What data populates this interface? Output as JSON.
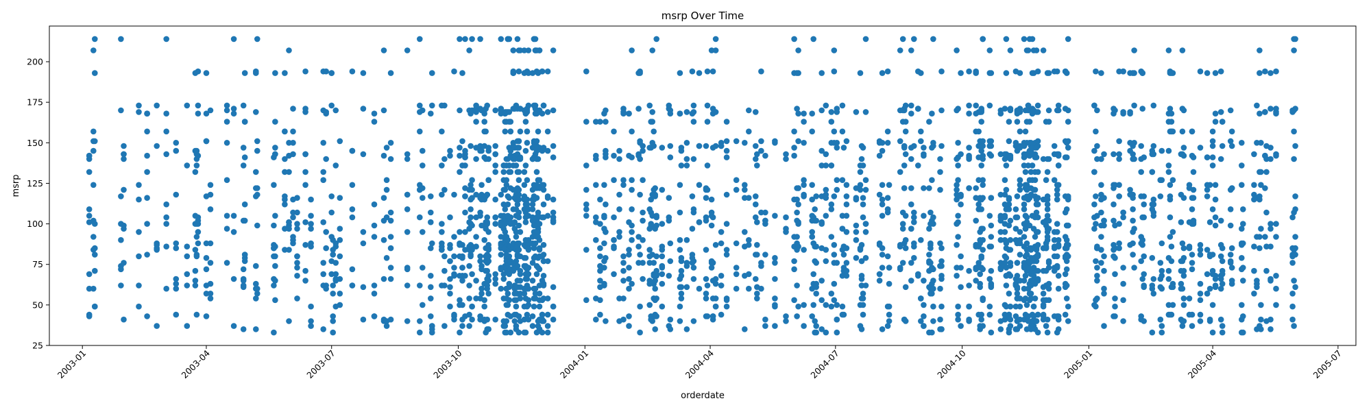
{
  "chart_data": {
    "type": "scatter",
    "title": "msrp Over Time",
    "xlabel": "orderdate",
    "ylabel": "msrp",
    "xlim": [
      "2002-12-08",
      "2005-07-14"
    ],
    "ylim": [
      25,
      222
    ],
    "x_ticks": [
      "2003-01",
      "2003-04",
      "2003-07",
      "2003-10",
      "2004-01",
      "2004-04",
      "2004-07",
      "2004-10",
      "2005-01",
      "2005-04",
      "2005-07"
    ],
    "y_ticks": [
      25,
      50,
      75,
      100,
      125,
      150,
      175,
      200
    ],
    "marker_color": "#1f77b4",
    "grid": false,
    "order_dates": [
      "2003-01-06",
      "2003-01-09",
      "2003-01-10",
      "2003-01-29",
      "2003-01-31",
      "2003-02-11",
      "2003-02-17",
      "2003-02-24",
      "2003-03-03",
      "2003-03-10",
      "2003-03-18",
      "2003-03-24",
      "2003-03-25",
      "2003-03-26",
      "2003-04-01",
      "2003-04-04",
      "2003-04-16",
      "2003-04-21",
      "2003-04-28",
      "2003-04-29",
      "2003-05-07",
      "2003-05-08",
      "2003-05-20",
      "2003-05-21",
      "2003-05-28",
      "2003-05-31",
      "2003-06-03",
      "2003-06-06",
      "2003-06-12",
      "2003-06-16",
      "2003-06-25",
      "2003-06-27",
      "2003-07-01",
      "2003-07-02",
      "2003-07-04",
      "2003-07-07",
      "2003-07-16",
      "2003-07-24",
      "2003-08-01",
      "2003-08-08",
      "2003-08-10",
      "2003-08-13",
      "2003-08-25",
      "2003-09-03",
      "2003-09-05",
      "2003-09-11",
      "2003-09-12",
      "2003-09-19",
      "2003-09-21",
      "2003-09-25",
      "2003-09-28",
      "2003-10-02",
      "2003-10-04",
      "2003-10-06",
      "2003-10-09",
      "2003-10-10",
      "2003-10-11",
      "2003-10-14",
      "2003-10-17",
      "2003-10-18",
      "2003-10-20",
      "2003-10-21",
      "2003-10-22",
      "2003-10-23",
      "2003-10-28",
      "2003-11-01",
      "2003-11-03",
      "2003-11-04",
      "2003-11-05",
      "2003-11-06",
      "2003-11-07",
      "2003-11-08",
      "2003-11-10",
      "2003-11-11",
      "2003-11-12",
      "2003-11-13",
      "2003-11-14",
      "2003-11-15",
      "2003-11-18",
      "2003-11-19",
      "2003-11-20",
      "2003-11-21",
      "2003-11-24",
      "2003-11-25",
      "2003-11-26",
      "2003-11-27",
      "2003-11-28",
      "2003-11-29",
      "2003-12-01",
      "2003-12-02",
      "2003-12-05",
      "2003-12-09",
      "2004-01-02",
      "2004-01-09",
      "2004-01-12",
      "2004-01-15",
      "2004-01-16",
      "2004-01-22",
      "2004-01-26",
      "2004-01-29",
      "2004-02-02",
      "2004-02-04",
      "2004-02-09",
      "2004-02-10",
      "2004-02-12",
      "2004-02-17",
      "2004-02-18",
      "2004-02-19",
      "2004-02-20",
      "2004-02-21",
      "2004-02-22",
      "2004-02-26",
      "2004-03-02",
      "2004-03-03",
      "2004-03-10",
      "2004-03-11",
      "2004-03-15",
      "2004-03-19",
      "2004-03-20",
      "2004-03-24",
      "2004-03-29",
      "2004-03-30",
      "2004-04-02",
      "2004-04-03",
      "2004-04-05",
      "2004-04-09",
      "2004-04-13",
      "2004-04-20",
      "2004-04-26",
      "2004-04-29",
      "2004-05-04",
      "2004-05-05",
      "2004-05-08",
      "2004-05-11",
      "2004-05-18",
      "2004-05-26",
      "2004-06-01",
      "2004-06-03",
      "2004-06-04",
      "2004-06-08",
      "2004-06-14",
      "2004-06-15",
      "2004-06-16",
      "2004-06-17",
      "2004-06-21",
      "2004-06-24",
      "2004-06-28",
      "2004-06-30",
      "2004-07-02",
      "2004-07-06",
      "2004-07-07",
      "2004-07-09",
      "2004-07-16",
      "2004-07-19",
      "2004-07-20",
      "2004-07-21",
      "2004-07-23",
      "2004-08-02",
      "2004-08-04",
      "2004-08-08",
      "2004-08-09",
      "2004-08-17",
      "2004-08-19",
      "2004-08-20",
      "2004-08-21",
      "2004-08-25",
      "2004-08-27",
      "2004-08-30",
      "2004-09-01",
      "2004-09-03",
      "2004-09-07",
      "2004-09-08",
      "2004-09-09",
      "2004-09-10",
      "2004-09-15",
      "2004-09-16",
      "2004-09-27",
      "2004-09-28",
      "2004-09-30",
      "2004-10-06",
      "2004-10-11",
      "2004-10-13",
      "2004-10-14",
      "2004-10-15",
      "2004-10-16",
      "2004-10-21",
      "2004-10-22",
      "2004-10-29",
      "2004-11-01",
      "2004-11-02",
      "2004-11-04",
      "2004-11-05",
      "2004-11-09",
      "2004-11-10",
      "2004-11-12",
      "2004-11-15",
      "2004-11-16",
      "2004-11-17",
      "2004-11-18",
      "2004-11-19",
      "2004-11-20",
      "2004-11-21",
      "2004-11-22",
      "2004-11-23",
      "2004-11-24",
      "2004-11-25",
      "2004-11-29",
      "2004-12-01",
      "2004-12-02",
      "2004-12-03",
      "2004-12-07",
      "2004-12-09",
      "2004-12-10",
      "2004-12-15",
      "2004-12-16",
      "2004-12-17",
      "2005-01-05",
      "2005-01-06",
      "2005-01-07",
      "2005-01-10",
      "2005-01-12",
      "2005-01-19",
      "2005-01-20",
      "2005-01-23",
      "2005-01-26",
      "2005-01-31",
      "2005-02-02",
      "2005-02-03",
      "2005-02-08",
      "2005-02-09",
      "2005-02-10",
      "2005-02-16",
      "2005-02-17",
      "2005-02-22",
      "2005-02-23",
      "2005-02-28",
      "2005-03-01",
      "2005-03-02",
      "2005-03-03",
      "2005-03-09",
      "2005-03-10",
      "2005-03-11",
      "2005-03-15",
      "2005-03-17",
      "2005-03-18",
      "2005-03-23",
      "2005-03-28",
      "2005-03-30",
      "2005-04-01",
      "2005-04-03",
      "2005-04-07",
      "2005-04-08",
      "2005-04-14",
      "2005-04-15",
      "2005-04-22",
      "2005-04-23",
      "2005-05-01",
      "2005-05-03",
      "2005-05-05",
      "2005-05-06",
      "2005-05-09",
      "2005-05-10",
      "2005-05-13",
      "2005-05-17",
      "2005-05-29",
      "2005-05-30",
      "2005-05-31"
    ],
    "msrp_levels": [
      33,
      35,
      37,
      40,
      41,
      43,
      44,
      49,
      50,
      53,
      54,
      57,
      60,
      61,
      62,
      63,
      65,
      66,
      68,
      69,
      71,
      72,
      73,
      74,
      76,
      77,
      79,
      80,
      81,
      84,
      85,
      86,
      87,
      88,
      90,
      92,
      95,
      97,
      99,
      100,
      101,
      102,
      104,
      105,
      107,
      109,
      112,
      115,
      116,
      117,
      118,
      121,
      122,
      124,
      127,
      132,
      136,
      140,
      141,
      142,
      143,
      145,
      147,
      148,
      150,
      151,
      157,
      163,
      168,
      169,
      170,
      171,
      173,
      193,
      194,
      207,
      214
    ],
    "point_seed": 20030106
  }
}
